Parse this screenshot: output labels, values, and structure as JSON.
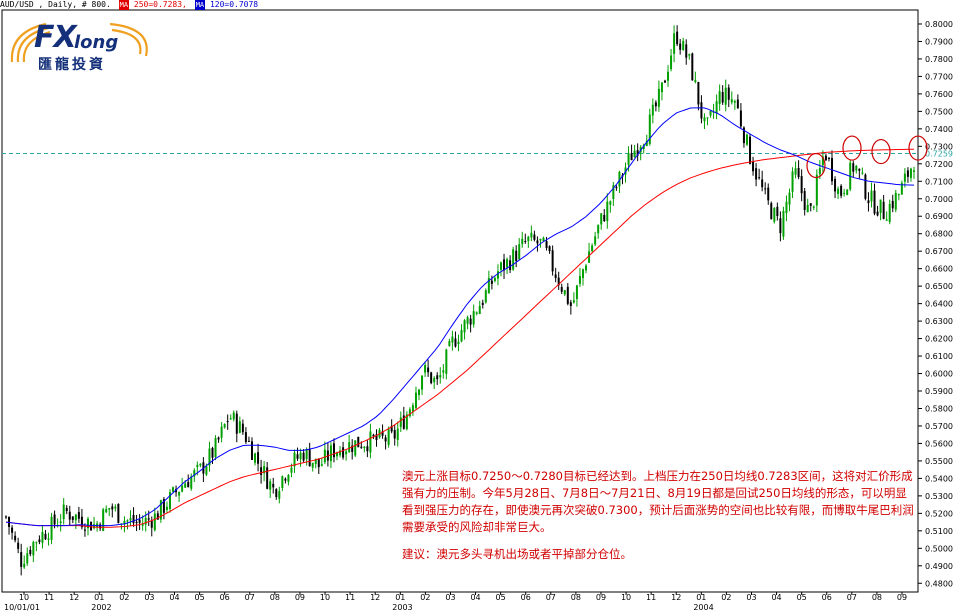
{
  "header": {
    "symbol": "AUD/USD , Daily, # 800.",
    "ma250_tag": "MA",
    "ma250_text": "250=0.7283,",
    "ma120_tag": "MA",
    "ma120_text": "120=0.7078"
  },
  "logo": {
    "fx": "FX",
    "long": "long",
    "chinese": "匯龍投資"
  },
  "colors": {
    "candle_up": "#00a000",
    "candle_down": "#000000",
    "ma250": "#ff0000",
    "ma120": "#0000ff",
    "reference_line": "#2aa6a6",
    "annotation_text": "#d00000",
    "axis": "#000000",
    "circles": "#cc0000"
  },
  "annotation": {
    "paragraph": "澳元上涨目标0.7250～0.7280目标已经达到。上档压力在250日均线0.7283区间，这将对汇价形成强有力的压制。今年5月28日、7月8日～7月21日、8月19日都是回试250日均线的形态，可以明显看到强压力的存在，即使澳元再次突破0.7300，预计后面涨势的空间也比较有限，而博取牛尾巴利润需要承受的风险却非常巨大。",
    "advice": "建议：澳元多头寻机出场或者平掉部分仓位。"
  },
  "chart_data": {
    "type": "candlestick",
    "title": "AUD/USD , Daily, # 800.",
    "xlabel": "",
    "ylabel": "",
    "ylim": [
      0.475,
      0.808
    ],
    "yticks": [
      0.48,
      0.49,
      0.5,
      0.51,
      0.52,
      0.53,
      0.54,
      0.55,
      0.56,
      0.57,
      0.58,
      0.59,
      0.6,
      0.61,
      0.62,
      0.63,
      0.64,
      0.65,
      0.66,
      0.67,
      0.68,
      0.69,
      0.7,
      0.71,
      0.72,
      0.73,
      0.74,
      0.75,
      0.76,
      0.77,
      0.78,
      0.79,
      0.8
    ],
    "ytick_labels": [
      "0.4800",
      "0.4900",
      "0.5000",
      "0.5100",
      "0.5200",
      "0.5300",
      "0.5400",
      "0.5500",
      "0.5600",
      "0.5700",
      "0.5800",
      "0.5900",
      "0.6000",
      "0.6100",
      "0.6200",
      "0.6300",
      "0.6400",
      "0.6500",
      "0.6600",
      "0.6700",
      "0.6800",
      "0.6900",
      "0.7000",
      "0.7100",
      "0.7200",
      "0.7300",
      "0.7400",
      "0.7500",
      "0.7600",
      "0.7700",
      "0.7800",
      "0.7900",
      "0.8000"
    ],
    "reference_line": {
      "value": 0.7259,
      "label": "0.7259"
    },
    "month_labels": [
      "10",
      "11",
      "12",
      "01",
      "02",
      "03",
      "04",
      "05",
      "06",
      "07",
      "08",
      "09",
      "10",
      "11",
      "12",
      "01",
      "02",
      "03",
      "04",
      "05",
      "06",
      "07",
      "08",
      "09",
      "10",
      "11",
      "12",
      "01",
      "02",
      "03",
      "04",
      "05",
      "06",
      "07",
      "08",
      "09"
    ],
    "year_labels": [
      "10/01/01",
      "2002",
      "2003",
      "2004"
    ],
    "price_path": [
      0.518,
      0.493,
      0.505,
      0.512,
      0.521,
      0.517,
      0.513,
      0.524,
      0.516,
      0.514,
      0.518,
      0.528,
      0.538,
      0.544,
      0.556,
      0.576,
      0.566,
      0.548,
      0.533,
      0.547,
      0.555,
      0.547,
      0.556,
      0.559,
      0.561,
      0.562,
      0.563,
      0.578,
      0.602,
      0.594,
      0.618,
      0.63,
      0.642,
      0.658,
      0.666,
      0.676,
      0.674,
      0.656,
      0.638,
      0.666,
      0.688,
      0.707,
      0.725,
      0.738,
      0.76,
      0.795,
      0.776,
      0.738,
      0.76,
      0.756,
      0.724,
      0.7,
      0.684,
      0.715,
      0.69,
      0.728,
      0.702,
      0.72,
      0.7,
      0.692,
      0.703,
      0.722
    ],
    "ma250_path": [
      0.515,
      0.514,
      0.513,
      0.513,
      0.513,
      0.513,
      0.512,
      0.512,
      0.5125,
      0.5135,
      0.5165,
      0.521,
      0.526,
      0.53,
      0.534,
      0.538,
      0.541,
      0.543,
      0.545,
      0.547,
      0.549,
      0.551,
      0.554,
      0.557,
      0.561,
      0.565,
      0.57,
      0.576,
      0.582,
      0.588,
      0.595,
      0.602,
      0.61,
      0.618,
      0.626,
      0.634,
      0.642,
      0.65,
      0.658,
      0.666,
      0.674,
      0.682,
      0.69,
      0.697,
      0.703,
      0.708,
      0.712,
      0.715,
      0.7175,
      0.7195,
      0.721,
      0.7225,
      0.7235,
      0.7245,
      0.7255,
      0.7265,
      0.727,
      0.7275,
      0.7278,
      0.728,
      0.7282,
      0.7283
    ],
    "ma120_path": [
      0.515,
      0.514,
      0.513,
      0.513,
      0.513,
      0.5135,
      0.513,
      0.513,
      0.514,
      0.517,
      0.522,
      0.53,
      0.538,
      0.544,
      0.551,
      0.556,
      0.559,
      0.559,
      0.558,
      0.556,
      0.556,
      0.558,
      0.562,
      0.566,
      0.57,
      0.576,
      0.585,
      0.595,
      0.605,
      0.615,
      0.628,
      0.64,
      0.65,
      0.657,
      0.662,
      0.668,
      0.675,
      0.68,
      0.684,
      0.69,
      0.698,
      0.708,
      0.72,
      0.732,
      0.742,
      0.749,
      0.752,
      0.752,
      0.748,
      0.742,
      0.737,
      0.732,
      0.728,
      0.725,
      0.721,
      0.718,
      0.715,
      0.712,
      0.71,
      0.709,
      0.708,
      0.7078
    ],
    "circled_touch_points": [
      0.719,
      0.729,
      0.727,
      0.729
    ]
  }
}
